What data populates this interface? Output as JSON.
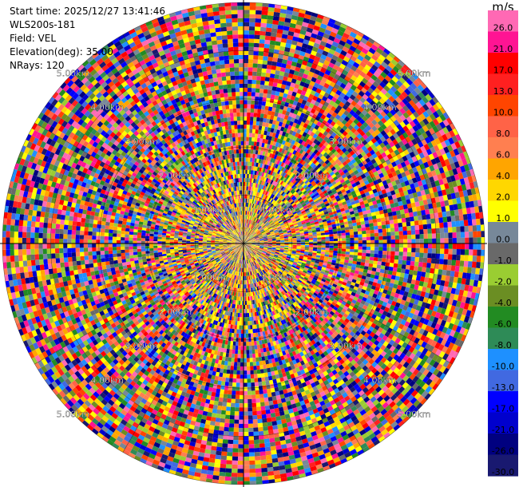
{
  "header": {
    "lines": [
      "Start time: 2025/12/27 13:41:46",
      "WLS200s-181",
      "Field: VEL",
      "Elevation(deg): 35.00",
      "NRays: 120"
    ]
  },
  "chart_data": {
    "type": "heatmap",
    "projection": "polar-ppi",
    "field": "VEL",
    "nrays": 120,
    "range_labels": [
      "1.00km",
      "2.00km",
      "3.00km",
      "4.00km",
      "5.00km"
    ],
    "range_rings_km": [
      1,
      2,
      3,
      4,
      5
    ],
    "max_range_km": 5.0,
    "colorbar": {
      "unit": "m/s",
      "ticks": [
        "26.0",
        "21.0",
        "17.0",
        "13.0",
        "10.0",
        "8.0",
        "6.0",
        "4.0",
        "2.0",
        "1.0",
        "0.0",
        "-1.0",
        "-2.0",
        "-4.0",
        "-6.0",
        "-8.0",
        "-10.0",
        "-13.0",
        "-17.0",
        "-21.0",
        "-26.0",
        "-30.0"
      ],
      "colors": [
        "#ff69b4",
        "#ff1493",
        "#ff0000",
        "#ff2020",
        "#ff4500",
        "#ff6347",
        "#ff7f50",
        "#ffa500",
        "#ffd700",
        "#ffff00",
        "#778899",
        "#696969",
        "#9acd32",
        "#6b8e23",
        "#228b22",
        "#2e8b57",
        "#1e90ff",
        "#4169e1",
        "#0000ff",
        "#0000cd",
        "#000080",
        "#191970"
      ]
    }
  }
}
